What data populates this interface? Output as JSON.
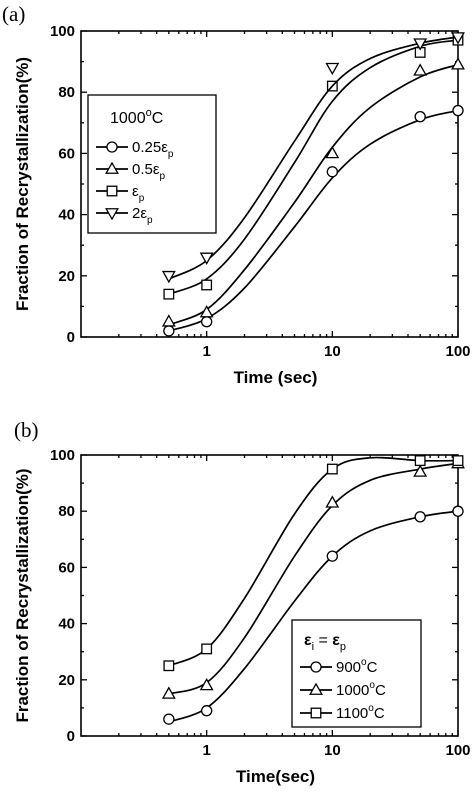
{
  "chart_data": [
    {
      "panel_label": "(a)",
      "type": "scatter",
      "xlabel": "Time (sec)",
      "ylabel": "Fraction of Recrystallization(%)",
      "xscale": "log",
      "xlim": [
        0.1,
        100
      ],
      "ylim": [
        0,
        100
      ],
      "x_ticks": [
        1,
        10,
        100
      ],
      "x_tick_labels": [
        "1",
        "10",
        "100"
      ],
      "y_ticks": [
        0,
        20,
        40,
        60,
        80,
        100
      ],
      "y_tick_labels": [
        "0",
        "20",
        "40",
        "60",
        "80",
        "100"
      ],
      "grid": false,
      "legend_placement": "center-left",
      "legend_title": {
        "main": "1000",
        "sup": "o",
        "tail": "C"
      },
      "series": [
        {
          "name": "0.25ε_p",
          "label_main": "0.25ε",
          "label_sub": "p",
          "marker": "circle",
          "x": [
            0.5,
            1,
            10,
            50,
            100
          ],
          "y": [
            2,
            5,
            54,
            72,
            74
          ],
          "fit_x": [
            0.5,
            1,
            2,
            5,
            10,
            20,
            50,
            100
          ],
          "fit_y": [
            2,
            6,
            16,
            36,
            52,
            63,
            71,
            74
          ]
        },
        {
          "name": "0.5ε_p",
          "label_main": "0.5ε",
          "label_sub": "p",
          "marker": "triangle-up",
          "x": [
            0.5,
            1,
            10,
            50,
            100
          ],
          "y": [
            5,
            8,
            60,
            87,
            89
          ],
          "fit_x": [
            0.5,
            1,
            2,
            5,
            10,
            20,
            50,
            100
          ],
          "fit_y": [
            4,
            9,
            22,
            44,
            62,
            75,
            85,
            89
          ]
        },
        {
          "name": "ε_p",
          "label_main": "ε",
          "label_sub": "p",
          "marker": "square",
          "x": [
            0.5,
            1,
            10,
            50,
            100
          ],
          "y": [
            14,
            17,
            82,
            93,
            97
          ],
          "fit_x": [
            0.5,
            1,
            2,
            5,
            10,
            20,
            50,
            100
          ],
          "fit_y": [
            14,
            19,
            32,
            57,
            77,
            88,
            95,
            97
          ]
        },
        {
          "name": "2ε_p",
          "label_main": "2ε",
          "label_sub": "p",
          "marker": "triangle-down",
          "x": [
            0.5,
            1,
            10,
            50,
            100
          ],
          "y": [
            20,
            26,
            88,
            96,
            98
          ],
          "fit_x": [
            0.5,
            1,
            2,
            5,
            10,
            20,
            50,
            100
          ],
          "fit_y": [
            19,
            25,
            39,
            64,
            82,
            91,
            96,
            98
          ]
        }
      ]
    },
    {
      "panel_label": "(b)",
      "type": "scatter",
      "xlabel": "Time(sec)",
      "ylabel": "Fraction of Recrystallization(%)",
      "xscale": "log",
      "xlim": [
        0.1,
        100
      ],
      "ylim": [
        0,
        100
      ],
      "x_ticks": [
        1,
        10,
        100
      ],
      "x_tick_labels": [
        "1",
        "10",
        "100"
      ],
      "y_ticks": [
        0,
        20,
        40,
        60,
        80,
        100
      ],
      "y_tick_labels": [
        "0",
        "20",
        "40",
        "60",
        "80",
        "100"
      ],
      "grid": false,
      "legend_placement": "bottom-right",
      "legend_title": {
        "lhs": "ε",
        "lhs_sub": "i",
        "eq": " = ",
        "rhs": "ε",
        "rhs_sub": "p"
      },
      "series": [
        {
          "name": "900°C",
          "label_main": "900",
          "label_sup": "o",
          "label_tail": "C",
          "marker": "circle",
          "x": [
            0.5,
            1,
            10,
            50,
            100
          ],
          "y": [
            6,
            9,
            64,
            78,
            80
          ],
          "fit_x": [
            0.5,
            1,
            2,
            5,
            10,
            20,
            50,
            100
          ],
          "fit_y": [
            5,
            10,
            24,
            48,
            64,
            73,
            78,
            80
          ]
        },
        {
          "name": "1000°C",
          "label_main": "1000",
          "label_sup": "o",
          "label_tail": "C",
          "marker": "triangle-up",
          "x": [
            0.5,
            1,
            10,
            50,
            100
          ],
          "y": [
            15,
            18,
            83,
            94,
            97
          ],
          "fit_x": [
            0.5,
            1,
            2,
            5,
            10,
            20,
            50,
            100
          ],
          "fit_y": [
            15,
            19,
            35,
            64,
            82,
            91,
            95,
            97
          ]
        },
        {
          "name": "1100°C",
          "label_main": "1100",
          "label_sup": "o",
          "label_tail": "C",
          "marker": "square",
          "x": [
            0.5,
            1,
            10,
            50,
            100
          ],
          "y": [
            25,
            31,
            95,
            98,
            98
          ],
          "fit_x": [
            0.5,
            1,
            2,
            5,
            10,
            20,
            50,
            100
          ],
          "fit_y": [
            25,
            31,
            49,
            79,
            95,
            99,
            98,
            98
          ]
        }
      ]
    }
  ]
}
